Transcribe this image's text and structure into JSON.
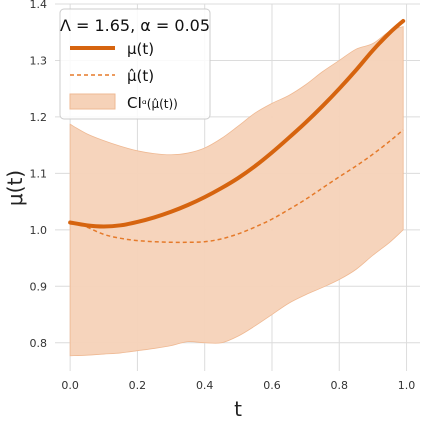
{
  "chart_data": {
    "type": "line",
    "xlabel": "t",
    "ylabel": "μ(t)",
    "xlim": [
      -0.045,
      1.04
    ],
    "ylim": [
      0.75,
      1.4
    ],
    "xticks": [
      0.0,
      0.2,
      0.4,
      0.6,
      0.8,
      1.0
    ],
    "xtick_labels": [
      "0.0",
      "0.2",
      "0.4",
      "0.6",
      "0.8",
      "1.0"
    ],
    "yticks": [
      0.8,
      0.9,
      1.0,
      1.1,
      1.2,
      1.3,
      1.4
    ],
    "ytick_labels": [
      "0.8",
      "0.9",
      "1.0",
      "1.1",
      "1.2",
      "1.3",
      "1.4"
    ],
    "grid": true,
    "legend": {
      "placement": "top-left",
      "title": "Λ = 1.65, α = 0.05",
      "entries": [
        "μ(t)",
        "μ̂(t)",
        "CI"
      ]
    },
    "colors": {
      "true_line": "#d6640f",
      "estimate_line": "#e57a2a",
      "band_fill": "#f6d2b8",
      "band_edge": "#efb993",
      "grid": "#dcdcdc"
    },
    "series": [
      {
        "name": "μ(t)",
        "style": "solid",
        "x": [
          0.0,
          0.05,
          0.1,
          0.15,
          0.2,
          0.25,
          0.3,
          0.35,
          0.4,
          0.45,
          0.5,
          0.55,
          0.6,
          0.65,
          0.7,
          0.75,
          0.8,
          0.85,
          0.9,
          0.95,
          0.99
        ],
        "y": [
          1.013,
          1.008,
          1.006,
          1.008,
          1.014,
          1.022,
          1.032,
          1.044,
          1.058,
          1.074,
          1.092,
          1.113,
          1.137,
          1.163,
          1.19,
          1.219,
          1.25,
          1.283,
          1.318,
          1.349,
          1.37
        ]
      },
      {
        "name": "μ̂(t)",
        "style": "dashed",
        "x": [
          0.05,
          0.1,
          0.15,
          0.2,
          0.25,
          0.3,
          0.35,
          0.4,
          0.45,
          0.5,
          0.55,
          0.6,
          0.65,
          0.7,
          0.75,
          0.8,
          0.85,
          0.9,
          0.95,
          0.99
        ],
        "y": [
          1.005,
          0.992,
          0.985,
          0.981,
          0.979,
          0.978,
          0.978,
          0.979,
          0.984,
          0.993,
          1.005,
          1.019,
          1.036,
          1.054,
          1.074,
          1.094,
          1.113,
          1.134,
          1.157,
          1.177
        ]
      }
    ],
    "band": {
      "name": "CI",
      "x": [
        0.0,
        0.05,
        0.1,
        0.15,
        0.2,
        0.25,
        0.3,
        0.35,
        0.4,
        0.45,
        0.5,
        0.55,
        0.6,
        0.65,
        0.7,
        0.75,
        0.8,
        0.85,
        0.9,
        0.95,
        0.99
      ],
      "upper": [
        1.187,
        1.17,
        1.158,
        1.148,
        1.14,
        1.135,
        1.133,
        1.136,
        1.145,
        1.162,
        1.184,
        1.207,
        1.224,
        1.238,
        1.257,
        1.28,
        1.3,
        1.32,
        1.33,
        1.352,
        1.36
      ],
      "lower": [
        0.777,
        0.778,
        0.78,
        0.782,
        0.786,
        0.79,
        0.795,
        0.802,
        0.8,
        0.8,
        0.812,
        0.83,
        0.85,
        0.87,
        0.885,
        0.898,
        0.912,
        0.93,
        0.955,
        0.978,
        1.0
      ]
    }
  }
}
